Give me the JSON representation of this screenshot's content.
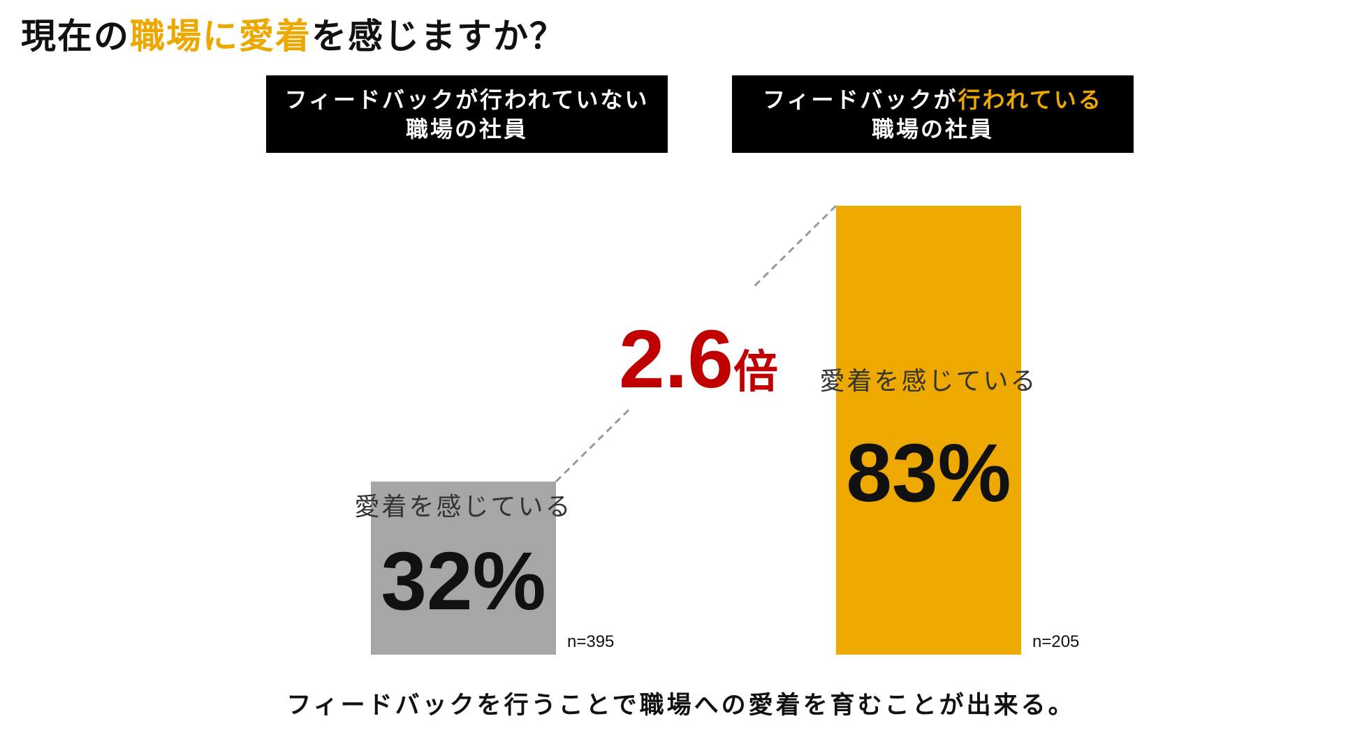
{
  "title": {
    "prefix": "現在の",
    "highlight": "職場に愛着",
    "suffix": "を感じますか？"
  },
  "groups": [
    {
      "header_line1": "フィードバックが行われていない",
      "header_line2": "職場の社員"
    },
    {
      "header_line1_plain": "フィードバックが",
      "header_line1_highlight": "行われている",
      "header_line2": "職場の社員"
    }
  ],
  "chart_data": {
    "type": "bar",
    "categories": [
      "フィードバックが行われていない職場の社員",
      "フィードバックが行われている職場の社員"
    ],
    "values": [
      32,
      83
    ],
    "value_labels": [
      "32%",
      "83%"
    ],
    "bar_captions": [
      "愛着を感じている",
      "愛着を感じている"
    ],
    "sample_sizes": [
      "n=395",
      "n=205"
    ],
    "colors": [
      "#a6a6a6",
      "#eda900"
    ],
    "ratio_label": "2.6倍",
    "ratio_color": "#c00000",
    "ylim": [
      0,
      100
    ],
    "grid": false
  },
  "footer": "フィードバックを行うことで職場への愛着を育むことが出来る。"
}
